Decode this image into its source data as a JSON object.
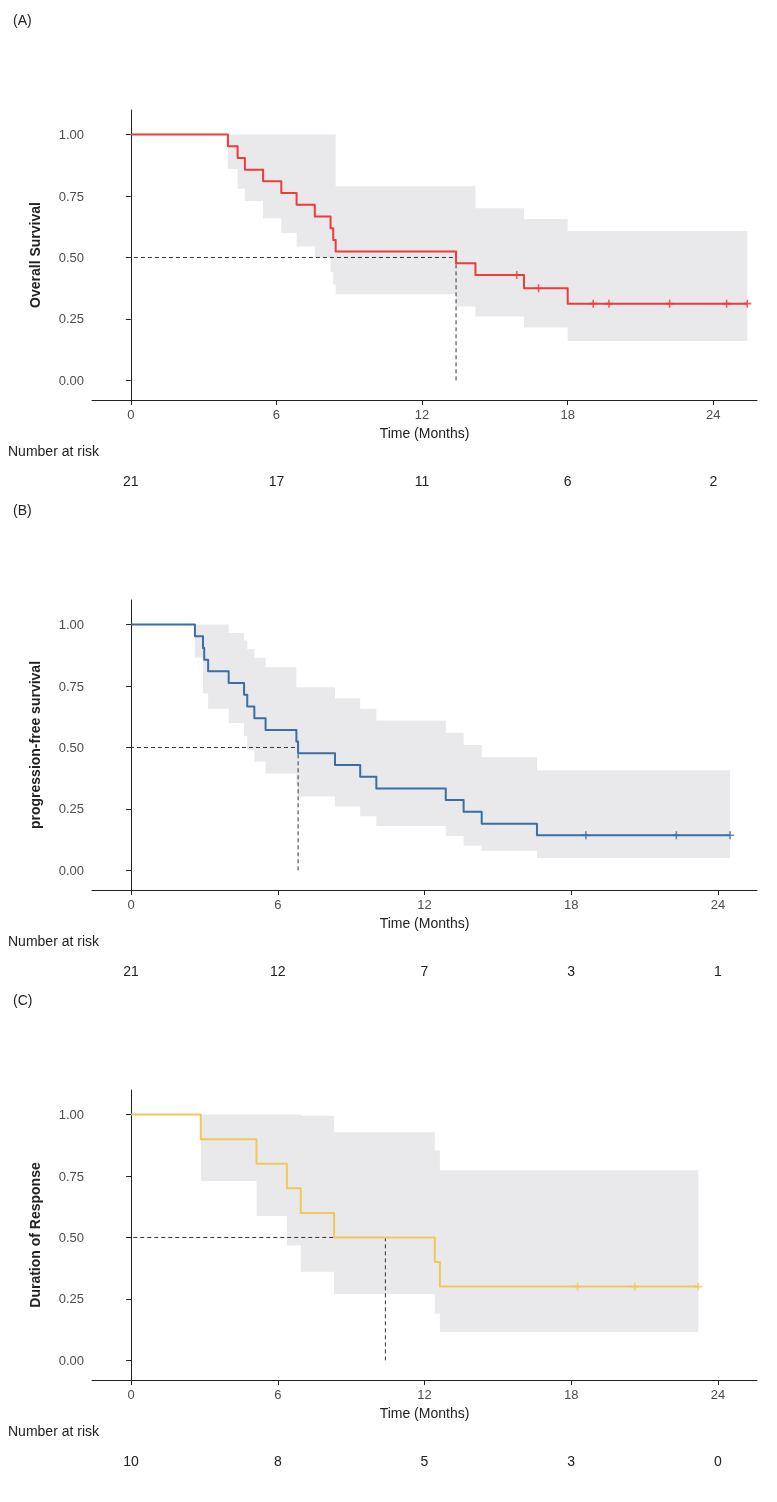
{
  "chart_data": [
    {
      "type": "step",
      "title": "(A)",
      "xlabel": "Time (Months)",
      "ylabel": "Overall Survival",
      "xlim": [
        -1.6,
        25.8
      ],
      "ylim": [
        -0.08,
        1.1
      ],
      "xticks": [
        0,
        6,
        12,
        18,
        24
      ],
      "yticks": [
        {
          "value": 0,
          "label": "0.00"
        },
        {
          "value": 0.25,
          "label": "0.25"
        },
        {
          "value": 0.5,
          "label": "0.50"
        },
        {
          "value": 0.75,
          "label": "0.75"
        },
        {
          "value": 1,
          "label": "1.00"
        }
      ],
      "series": [
        {
          "color": "#ee3b3b",
          "x": [
            0,
            4.0,
            4.4,
            4.7,
            5.45,
            6.2,
            6.83,
            7.58,
            8.23,
            8.34,
            8.44,
            13.4,
            14.2,
            16.2,
            18.0,
            25.4
          ],
          "values": [
            1,
            0.952,
            0.905,
            0.857,
            0.81,
            0.762,
            0.714,
            0.667,
            0.619,
            0.571,
            0.524,
            0.476,
            0.429,
            0.375,
            0.312,
            0.312
          ],
          "lower": [
            1,
            0.86,
            0.78,
            0.73,
            0.66,
            0.6,
            0.545,
            0.5,
            0.44,
            0.39,
            0.35,
            0.3,
            0.26,
            0.215,
            0.16,
            0.16
          ],
          "upper": [
            1,
            1,
            1,
            1,
            1,
            1,
            1,
            1,
            1,
            1,
            0.79,
            0.79,
            0.7,
            0.656,
            0.608,
            0.608
          ]
        },
        {
          "type": "scatter",
          "color": "#ee3b3b",
          "marker": "cross",
          "x": [
            15.9,
            16.8,
            19.05,
            19.7,
            22.2,
            24.55,
            25.4
          ],
          "values": [
            0.429,
            0.375,
            0.312,
            0.312,
            0.312,
            0.312,
            0.312
          ]
        },
        {
          "type": "line",
          "color": "#333333",
          "line_style": "dashed",
          "marker": "none",
          "x": [
            13.4,
            13.4,
            0
          ],
          "values": [
            0,
            0.5,
            0.5
          ]
        }
      ],
      "annotations": [
        "Number at risk",
        "21",
        "17",
        "11",
        "6",
        "2"
      ]
    },
    {
      "type": "step",
      "title": "(B)",
      "xlabel": "Time (Months)",
      "ylabel": "progression-free survival",
      "xlim": [
        -1.6,
        25.6
      ],
      "ylim": [
        -0.08,
        1.1
      ],
      "xticks": [
        0,
        6,
        12,
        18,
        24
      ],
      "yticks": [
        {
          "value": 0,
          "label": "0.00"
        },
        {
          "value": 0.25,
          "label": "0.25"
        },
        {
          "value": 0.5,
          "label": "0.50"
        },
        {
          "value": 0.75,
          "label": "0.75"
        },
        {
          "value": 1,
          "label": "1.00"
        }
      ],
      "series": [
        {
          "color": "#3a6ea5",
          "x": [
            0,
            2.61,
            2.94,
            2.99,
            3.15,
            3.99,
            4.62,
            4.75,
            5.04,
            5.5,
            6.76,
            6.83,
            8.34,
            9.37,
            10.03,
            12.87,
            13.6,
            14.34,
            16.6,
            24.5
          ],
          "values": [
            1,
            0.952,
            0.905,
            0.857,
            0.81,
            0.762,
            0.714,
            0.667,
            0.619,
            0.571,
            0.524,
            0.476,
            0.429,
            0.381,
            0.333,
            0.286,
            0.238,
            0.19,
            0.143,
            0.143
          ],
          "lower": [
            1,
            0.865,
            0.72,
            0.72,
            0.657,
            0.6,
            0.547,
            0.49,
            0.443,
            0.394,
            0.35,
            0.3,
            0.26,
            0.22,
            0.18,
            0.14,
            0.1,
            0.08,
            0.05,
            0.05
          ],
          "upper": [
            1,
            1,
            1,
            1,
            1,
            0.966,
            0.935,
            0.9,
            0.865,
            0.826,
            0.745,
            0.745,
            0.7,
            0.657,
            0.61,
            0.56,
            0.51,
            0.46,
            0.407,
            0.407
          ]
        },
        {
          "type": "scatter",
          "color": "#3a6ea5",
          "marker": "cross",
          "x": [
            18.6,
            22.3,
            24.5
          ],
          "values": [
            0.143,
            0.143,
            0.143
          ]
        },
        {
          "type": "line",
          "color": "#333333",
          "line_style": "dashed",
          "marker": "none",
          "x": [
            6.83,
            6.83,
            0
          ],
          "values": [
            0,
            0.5,
            0.5
          ]
        }
      ],
      "annotations": [
        "Number at risk",
        "21",
        "12",
        "7",
        "3",
        "1"
      ]
    },
    {
      "type": "step",
      "title": "(C)",
      "xlabel": "Time (Months)",
      "ylabel": "Duration of Response",
      "xlim": [
        -1.6,
        25.6
      ],
      "ylim": [
        -0.08,
        1.1
      ],
      "xticks": [
        0,
        6,
        12,
        18,
        24
      ],
      "yticks": [
        {
          "value": 0,
          "label": "0.00"
        },
        {
          "value": 0.25,
          "label": "0.25"
        },
        {
          "value": 0.5,
          "label": "0.50"
        },
        {
          "value": 0.75,
          "label": "0.75"
        },
        {
          "value": 1,
          "label": "1.00"
        }
      ],
      "series": [
        {
          "color": "#f0c95a",
          "x": [
            0,
            2.85,
            5.13,
            6.37,
            6.94,
            8.3,
            12.42,
            12.63,
            23.2
          ],
          "values": [
            1,
            0.9,
            0.8,
            0.7,
            0.6,
            0.5,
            0.4,
            0.3,
            0.3
          ],
          "lower": [
            1,
            0.73,
            0.587,
            0.467,
            0.36,
            0.27,
            0.19,
            0.115,
            0.115
          ],
          "upper": [
            1,
            1,
            1,
            1,
            0.995,
            0.928,
            0.854,
            0.773,
            0.773
          ]
        },
        {
          "type": "scatter",
          "color": "#f0c95a",
          "marker": "cross",
          "x": [
            18.26,
            20.6,
            23.2
          ],
          "values": [
            0.3,
            0.3,
            0.3
          ]
        },
        {
          "type": "line",
          "color": "#333333",
          "line_style": "dashed",
          "marker": "none",
          "x": [
            10.4,
            10.4,
            0
          ],
          "values": [
            0,
            0.5,
            0.5
          ]
        }
      ],
      "annotations": [
        "Number at risk",
        "10",
        "8",
        "5",
        "3",
        "0"
      ]
    }
  ]
}
